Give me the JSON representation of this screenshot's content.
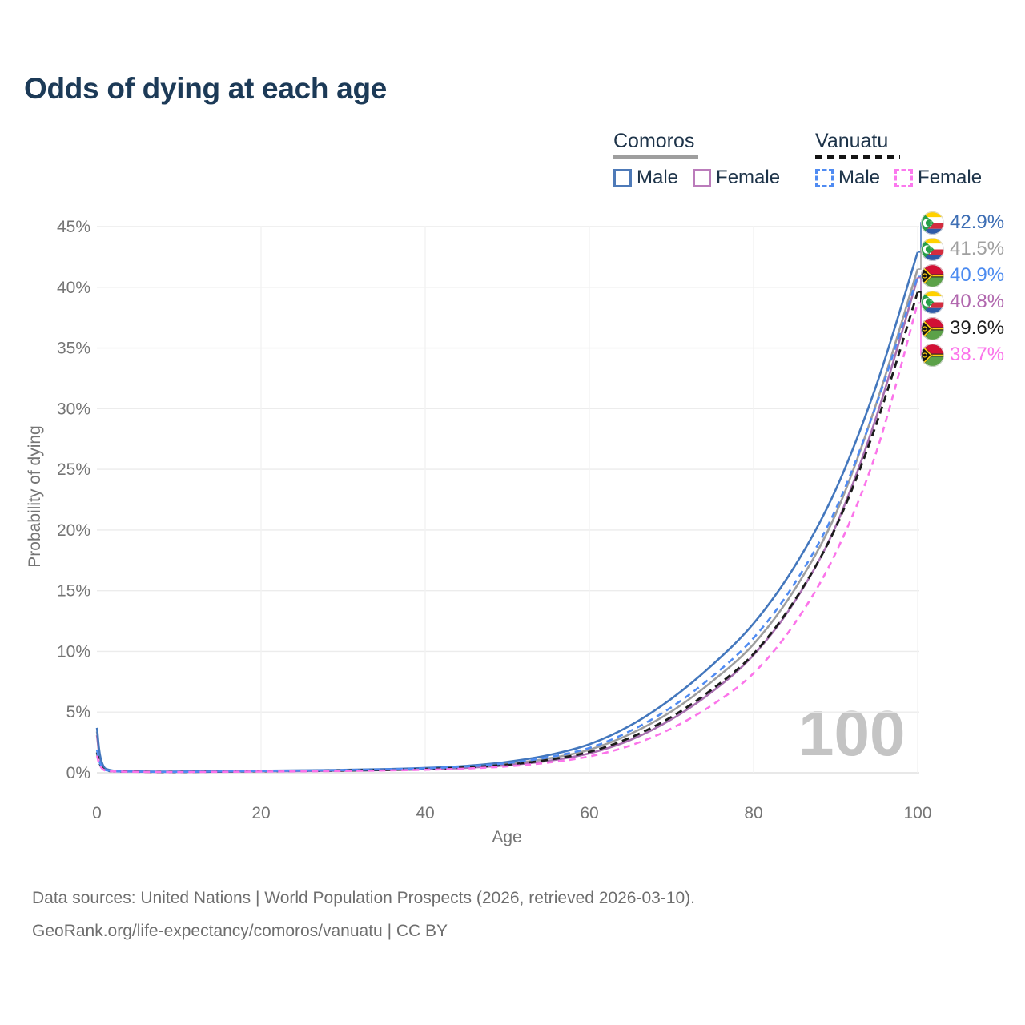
{
  "title": "Odds of dying at each age",
  "legend": {
    "comoros": {
      "label": "Comoros",
      "underline_color": "#9e9e9e",
      "male": "Male",
      "male_color": "#4e7ab8",
      "female": "Female",
      "female_color": "#bb7cbb"
    },
    "vanuatu": {
      "label": "Vanuatu",
      "underline_color": "#141414",
      "male": "Male",
      "male_color": "#4f8bf2",
      "female": "Female",
      "female_color": "#fb78ee"
    }
  },
  "watermark": "100",
  "end_labels": [
    {
      "value": "42.9%",
      "flag": "comoros",
      "series": "comoros_male",
      "color": "#3d6eb4"
    },
    {
      "value": "41.5%",
      "flag": "comoros",
      "series": "comoros_both",
      "color": "#a0a0a0"
    },
    {
      "value": "40.9%",
      "flag": "vanuatu",
      "series": "vanuatu_male",
      "color": "#4c8bf0"
    },
    {
      "value": "40.8%",
      "flag": "comoros",
      "series": "comoros_female",
      "color": "#b167ae"
    },
    {
      "value": "39.6%",
      "flag": "vanuatu",
      "series": "vanuatu_both",
      "color": "#1f1f1f"
    },
    {
      "value": "38.7%",
      "flag": "vanuatu",
      "series": "vanuatu_female",
      "color": "#fb74ea"
    }
  ],
  "footer": {
    "line1": "Data sources: United Nations | World Population Prospects (2026, retrieved 2026-03-10).",
    "line2": "GeoRank.org/life-expectancy/comoros/vanuatu | CC BY"
  },
  "chart_data": {
    "type": "line",
    "xlabel": "Age",
    "ylabel": "Probability of dying",
    "xlim": [
      0,
      100
    ],
    "ylim_percent": [
      0,
      45
    ],
    "xticks": [
      0,
      20,
      40,
      60,
      80,
      100
    ],
    "yticks_percent": [
      0,
      5,
      10,
      15,
      20,
      25,
      30,
      35,
      40,
      45
    ],
    "grid": true,
    "legend_position": "top-right",
    "x": [
      0,
      1,
      5,
      10,
      15,
      20,
      25,
      30,
      35,
      40,
      45,
      50,
      55,
      60,
      65,
      70,
      75,
      80,
      85,
      90,
      95,
      100
    ],
    "series": [
      {
        "id": "comoros_both",
        "name": "Comoros",
        "color": "#9e9e9e",
        "dash": null,
        "width": 2.6,
        "values": [
          3.4,
          0.32,
          0.11,
          0.09,
          0.11,
          0.14,
          0.17,
          0.2,
          0.26,
          0.34,
          0.48,
          0.74,
          1.18,
          1.9,
          3.2,
          5.05,
          7.55,
          10.6,
          15.1,
          21.3,
          30.5,
          41.5
        ]
      },
      {
        "id": "comoros_female",
        "name": "Comoros Female",
        "color": "#a86fb0",
        "dash": null,
        "width": 2.6,
        "values": [
          3.1,
          0.29,
          0.1,
          0.08,
          0.1,
          0.12,
          0.14,
          0.17,
          0.22,
          0.29,
          0.41,
          0.62,
          0.98,
          1.6,
          2.7,
          4.4,
          6.7,
          9.7,
          14.1,
          20.3,
          29.4,
          40.8
        ]
      },
      {
        "id": "comoros_male",
        "name": "Comoros Male",
        "color": "#4377bd",
        "dash": null,
        "width": 2.6,
        "values": [
          3.7,
          0.35,
          0.12,
          0.1,
          0.13,
          0.17,
          0.2,
          0.24,
          0.3,
          0.4,
          0.57,
          0.9,
          1.45,
          2.35,
          3.9,
          6.1,
          8.9,
          12.3,
          17.0,
          23.3,
          32.0,
          42.9
        ]
      },
      {
        "id": "vanuatu_both",
        "name": "Vanuatu",
        "color": "#1c1c1c",
        "dash": [
          9,
          6
        ],
        "width": 2.8,
        "values": [
          1.7,
          0.21,
          0.09,
          0.07,
          0.1,
          0.13,
          0.16,
          0.19,
          0.24,
          0.31,
          0.44,
          0.67,
          1.07,
          1.72,
          2.9,
          4.6,
          6.9,
          9.8,
          14.2,
          20.2,
          28.8,
          39.6
        ]
      },
      {
        "id": "vanuatu_male",
        "name": "Vanuatu Male",
        "color": "#4f8bf2",
        "dash": [
          8,
          6
        ],
        "width": 2.6,
        "values": [
          1.9,
          0.24,
          0.1,
          0.08,
          0.11,
          0.15,
          0.18,
          0.22,
          0.28,
          0.37,
          0.52,
          0.8,
          1.28,
          2.05,
          3.45,
          5.4,
          7.95,
          11.1,
          15.6,
          21.7,
          30.4,
          40.9
        ]
      },
      {
        "id": "vanuatu_female",
        "name": "Vanuatu Female",
        "color": "#fb74ea",
        "dash": [
          8,
          6
        ],
        "width": 2.6,
        "values": [
          1.4,
          0.19,
          0.08,
          0.06,
          0.08,
          0.1,
          0.12,
          0.15,
          0.19,
          0.25,
          0.35,
          0.53,
          0.84,
          1.35,
          2.25,
          3.65,
          5.6,
          8.2,
          12.3,
          18.1,
          26.5,
          38.7
        ]
      }
    ]
  }
}
